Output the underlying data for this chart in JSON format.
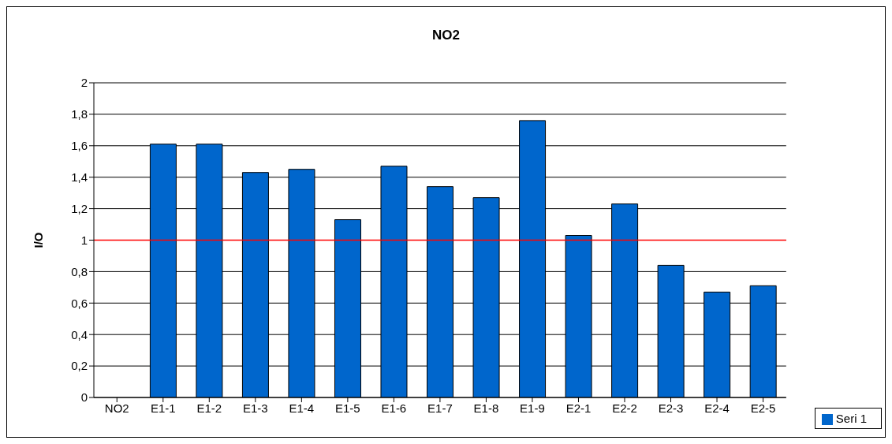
{
  "chart_data": {
    "type": "bar",
    "title": "NO2",
    "ylabel": "I/O",
    "categories": [
      "NO2",
      "E1-1",
      "E1-2",
      "E1-3",
      "E1-4",
      "E1-5",
      "E1-6",
      "E1-7",
      "E1-8",
      "E1-9",
      "E2-1",
      "E2-2",
      "E2-3",
      "E2-4",
      "E2-5"
    ],
    "series": [
      {
        "name": "Seri 1",
        "color": "#0066cc",
        "values": [
          null,
          1.61,
          1.61,
          1.43,
          1.45,
          1.13,
          1.47,
          1.34,
          1.27,
          1.76,
          1.03,
          1.23,
          0.84,
          0.67,
          0.71
        ]
      }
    ],
    "ylim": [
      0,
      2
    ],
    "yticks": [
      0,
      {
        "value": 0.2,
        "label": "0,2"
      },
      {
        "value": 0.4,
        "label": "0,4"
      },
      {
        "value": 0.6,
        "label": "0,6"
      },
      {
        "value": 0.8,
        "label": "0,8"
      },
      1,
      {
        "value": 1.2,
        "label": "1,2"
      },
      {
        "value": 1.4,
        "label": "1,4"
      },
      {
        "value": 1.6,
        "label": "1,6"
      },
      {
        "value": 1.8,
        "label": "1,8"
      },
      2
    ],
    "ref_lines": [
      {
        "axis": "y",
        "value": 1,
        "color": "#ff0000"
      }
    ],
    "grid": "y",
    "legend": "bottom right"
  }
}
